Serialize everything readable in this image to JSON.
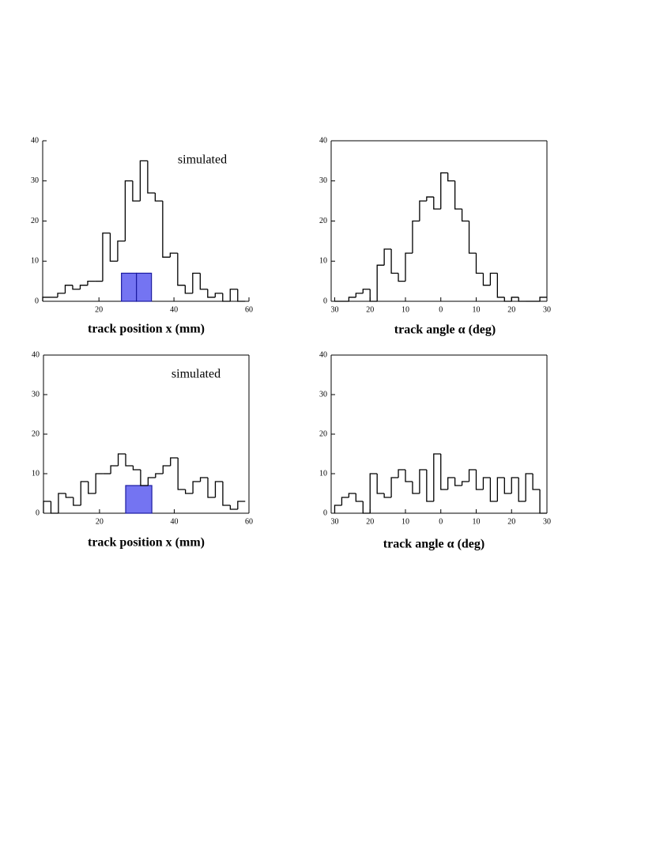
{
  "chart_data": [
    {
      "type": "histogram",
      "xlabel": "track position x (mm)",
      "annotation": "simulated",
      "color": "#000000",
      "xlim": [
        5,
        60
      ],
      "ylim": [
        0,
        40
      ],
      "xticks": [
        20,
        40,
        60
      ],
      "yticks": [
        0,
        10,
        20,
        30,
        40
      ],
      "bins": [
        5,
        7,
        9,
        11,
        13,
        15,
        17,
        19,
        21,
        23,
        25,
        27,
        29,
        31,
        33,
        35,
        37,
        39,
        41,
        43,
        45,
        47,
        49,
        51,
        53,
        55,
        57,
        59
      ],
      "values": [
        1,
        1,
        2,
        4,
        3,
        4,
        5,
        5,
        17,
        10,
        15,
        30,
        25,
        35,
        27,
        25,
        11,
        12,
        4,
        2,
        7,
        3,
        1,
        2,
        0,
        3,
        0
      ],
      "highlight": {
        "bins": [
          26,
          30,
          34
        ],
        "values": [
          7,
          7
        ],
        "color": "#7474f2"
      }
    },
    {
      "type": "histogram",
      "xlabel": "track angle α (deg)",
      "color": "#000000",
      "xlim": [
        -31,
        30
      ],
      "ylim": [
        0,
        40
      ],
      "xticks": [
        {
          "value": -30,
          "label": "30"
        },
        {
          "value": -20,
          "label": "20"
        },
        {
          "value": -10,
          "label": "10"
        },
        0,
        10,
        20,
        30
      ],
      "yticks": [
        0,
        10,
        20,
        30,
        40
      ],
      "bins": [
        -30,
        -28,
        -26,
        -24,
        -22,
        -20,
        -18,
        -16,
        -14,
        -12,
        -10,
        -8,
        -6,
        -4,
        -2,
        0,
        2,
        4,
        6,
        8,
        10,
        12,
        14,
        16,
        18,
        20,
        22,
        24,
        26,
        28,
        30
      ],
      "values": [
        0,
        0,
        1,
        2,
        3,
        0,
        9,
        13,
        7,
        5,
        12,
        20,
        25,
        26,
        23,
        32,
        30,
        23,
        20,
        12,
        7,
        4,
        7,
        1,
        0,
        1,
        0,
        0,
        0,
        1
      ]
    },
    {
      "type": "histogram",
      "xlabel": "track position x (mm)",
      "annotation": "simulated",
      "color": "#000000",
      "xlim": [
        5,
        60
      ],
      "ylim": [
        0,
        40
      ],
      "xticks": [
        20,
        40,
        60
      ],
      "yticks": [
        0,
        10,
        20,
        30,
        40
      ],
      "bins": [
        5,
        7,
        9,
        11,
        13,
        15,
        17,
        19,
        21,
        23,
        25,
        27,
        29,
        31,
        33,
        35,
        37,
        39,
        41,
        43,
        45,
        47,
        49,
        51,
        53,
        55,
        57,
        59
      ],
      "values": [
        3,
        0,
        5,
        4,
        2,
        8,
        5,
        10,
        10,
        12,
        15,
        12,
        11,
        7,
        9,
        10,
        12,
        14,
        6,
        5,
        8,
        9,
        4,
        8,
        2,
        1,
        3
      ],
      "highlight": {
        "bins": [
          27,
          34
        ],
        "values": [
          7
        ],
        "color": "#7474f2"
      }
    },
    {
      "type": "histogram",
      "xlabel": "track angle α (deg)",
      "color": "#000000",
      "xlim": [
        -31,
        30
      ],
      "ylim": [
        0,
        40
      ],
      "xticks": [
        {
          "value": -30,
          "label": "30"
        },
        {
          "value": -20,
          "label": "20"
        },
        {
          "value": -10,
          "label": "10"
        },
        0,
        10,
        20,
        30
      ],
      "yticks": [
        0,
        10,
        20,
        30,
        40
      ],
      "bins": [
        -30,
        -28,
        -26,
        -24,
        -22,
        -20,
        -18,
        -16,
        -14,
        -12,
        -10,
        -8,
        -6,
        -4,
        -2,
        0,
        2,
        4,
        6,
        8,
        10,
        12,
        14,
        16,
        18,
        20,
        22,
        24,
        26,
        28,
        30
      ],
      "values": [
        2,
        4,
        5,
        3,
        0,
        10,
        5,
        4,
        9,
        11,
        8,
        5,
        11,
        3,
        15,
        6,
        9,
        7,
        8,
        11,
        6,
        9,
        3,
        9,
        5,
        9,
        3,
        10,
        6,
        0
      ]
    }
  ]
}
